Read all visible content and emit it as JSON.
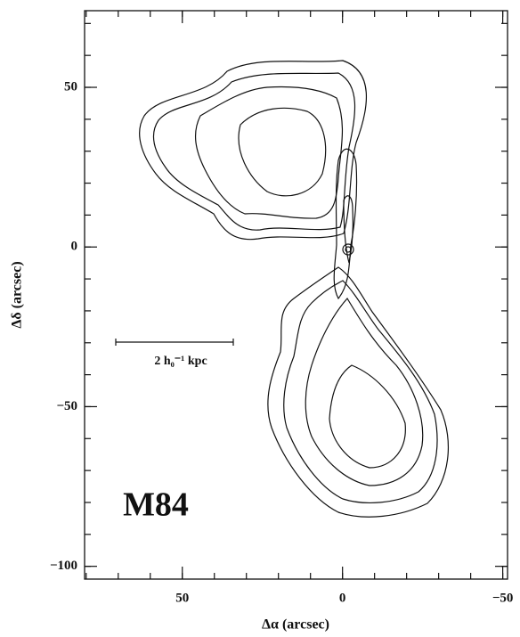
{
  "chart_data": {
    "type": "contour",
    "x_label": "Δα (arcsec)",
    "y_label": "Δδ (arcsec)",
    "annotation": "M84",
    "scale_bar_label": "2 h₀⁻¹ kpc",
    "xlim": [
      80.5,
      -51.5
    ],
    "ylim": [
      -104,
      74
    ],
    "xticks": [
      50,
      0,
      {
        "value": -50,
        "label": "−50"
      }
    ],
    "yticks": [
      50,
      0,
      {
        "value": -50,
        "label": "−50"
      },
      {
        "value": -100,
        "label": "−100"
      }
    ],
    "xminorticks": [
      80,
      70,
      60,
      50,
      40,
      30,
      20,
      10,
      0,
      -10,
      -20,
      -30,
      -40,
      -50
    ],
    "yminorticks": [
      70,
      60,
      50,
      40,
      30,
      20,
      10,
      0,
      -10,
      -20,
      -30,
      -40,
      -50,
      -60,
      -70,
      -80,
      -90,
      -100
    ]
  }
}
